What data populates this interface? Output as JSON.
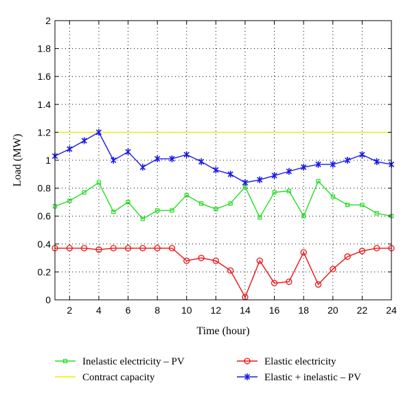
{
  "chart_data": {
    "type": "line",
    "xlabel": "Time (hour)",
    "ylabel": "Load (MW)",
    "xlim": [
      1,
      24
    ],
    "ylim": [
      0,
      2
    ],
    "xticks": [
      2,
      4,
      6,
      8,
      10,
      12,
      14,
      16,
      18,
      20,
      22,
      24
    ],
    "yticks": [
      0,
      0.2,
      0.4,
      0.6,
      0.8,
      1,
      1.2,
      1.4,
      1.6,
      1.8,
      2
    ],
    "grid": true,
    "legend_position": "bottom",
    "x": [
      1,
      2,
      3,
      4,
      5,
      6,
      7,
      8,
      9,
      10,
      11,
      12,
      13,
      14,
      15,
      16,
      17,
      18,
      19,
      20,
      21,
      22,
      23,
      24
    ],
    "series": [
      {
        "name": "Inelastic electricity – PV",
        "color": "#22dd22",
        "marker": "square",
        "values": [
          0.67,
          0.71,
          0.77,
          0.84,
          0.63,
          0.7,
          0.58,
          0.64,
          0.64,
          0.75,
          0.69,
          0.65,
          0.69,
          0.81,
          0.59,
          0.77,
          0.78,
          0.6,
          0.85,
          0.74,
          0.68,
          0.68,
          0.62,
          0.6
        ]
      },
      {
        "name": "Elastic electricity",
        "color": "#ee1111",
        "marker": "circle",
        "values": [
          0.37,
          0.37,
          0.37,
          0.36,
          0.37,
          0.37,
          0.37,
          0.37,
          0.37,
          0.28,
          0.3,
          0.28,
          0.21,
          0.02,
          0.28,
          0.12,
          0.13,
          0.34,
          0.11,
          0.22,
          0.31,
          0.35,
          0.37,
          0.37
        ]
      },
      {
        "name": "Contract capacity",
        "color": "#eeee00",
        "marker": "none",
        "values": [
          1.2,
          1.2,
          1.2,
          1.2,
          1.2,
          1.2,
          1.2,
          1.2,
          1.2,
          1.2,
          1.2,
          1.2,
          1.2,
          1.2,
          1.2,
          1.2,
          1.2,
          1.2,
          1.2,
          1.2,
          1.2,
          1.2,
          1.2,
          1.2
        ]
      },
      {
        "name": "Elastic + inelastic – PV",
        "color": "#1a1ae6",
        "marker": "star",
        "values": [
          1.03,
          1.08,
          1.14,
          1.2,
          1.0,
          1.06,
          0.95,
          1.01,
          1.01,
          1.04,
          0.99,
          0.93,
          0.9,
          0.84,
          0.86,
          0.89,
          0.92,
          0.95,
          0.97,
          0.97,
          1.0,
          1.04,
          0.99,
          0.97
        ]
      }
    ]
  }
}
